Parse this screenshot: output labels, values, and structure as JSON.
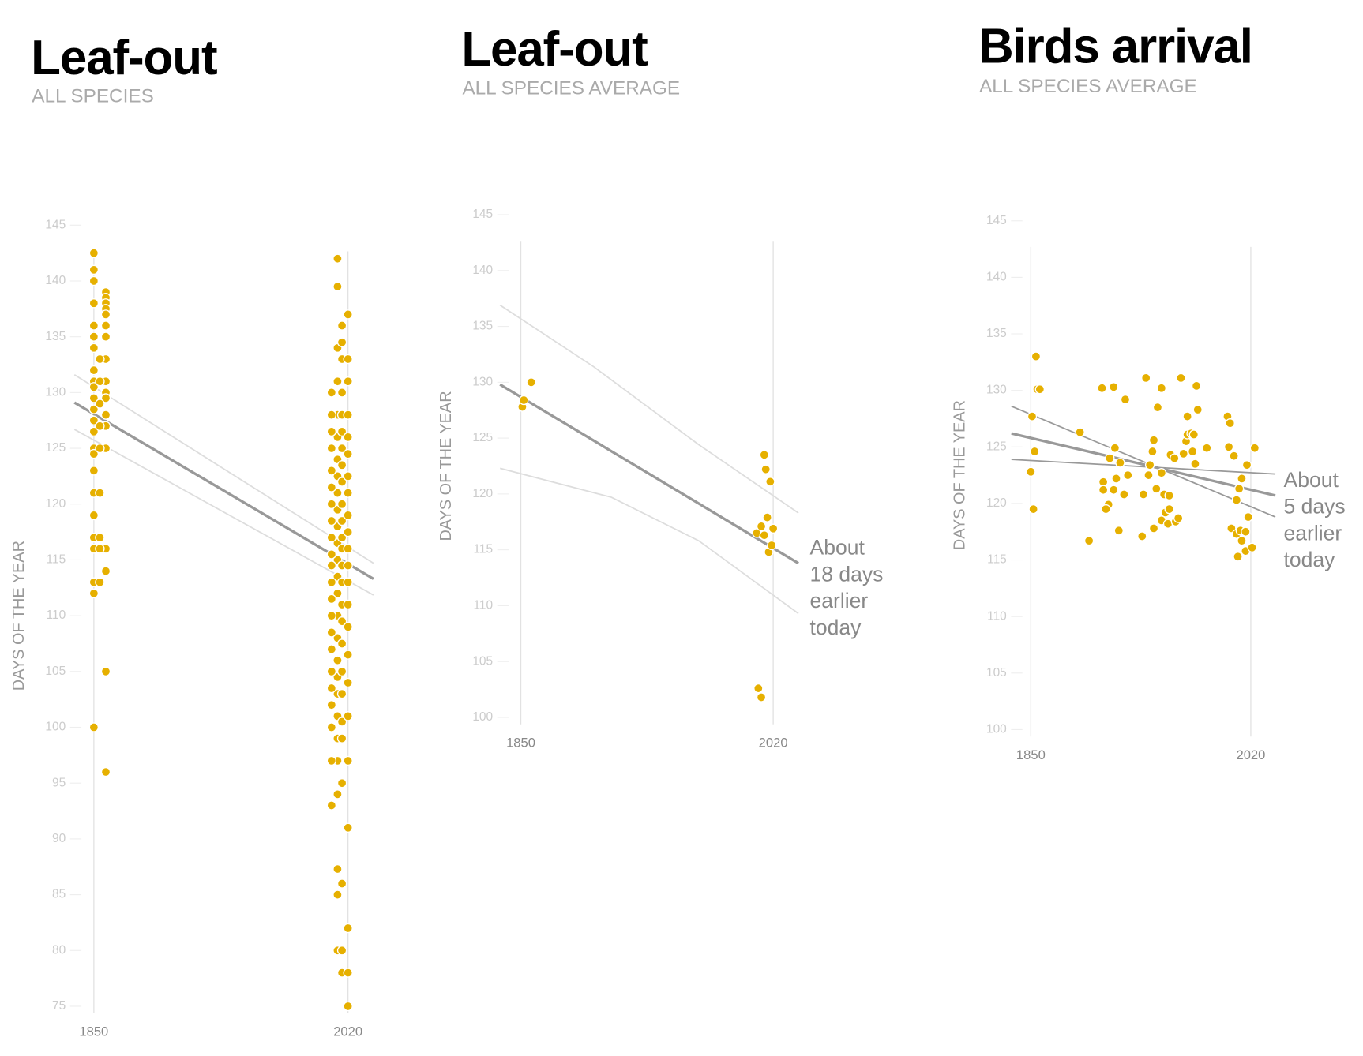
{
  "chart_data": [
    {
      "type": "scatter",
      "title": "Leaf-out",
      "subtitle": "ALL SPECIES",
      "y_label": "DAYS OF THE YEAR",
      "xlim": [
        1830,
        2040
      ],
      "ylim": [
        75,
        145
      ],
      "xticks": [
        1850,
        2020
      ],
      "yticks": [
        75,
        80,
        85,
        90,
        95,
        100,
        105,
        110,
        115,
        120,
        125,
        130,
        135,
        140,
        145
      ],
      "series": [
        {
          "mode": "markers",
          "color": "#e6b000",
          "x": [
            1850,
            1850,
            1850,
            1850,
            1850,
            1850,
            1850,
            1850,
            1850,
            1850,
            1850,
            1850,
            1850,
            1850,
            1850,
            1850,
            1850,
            1850,
            1850,
            1850,
            1850,
            1850,
            1850,
            1850,
            1858,
            1858,
            1858,
            1858,
            1858,
            1858,
            1858,
            1858,
            1858,
            1858,
            1858,
            1858,
            1858,
            1858,
            1858,
            1858,
            1858,
            1858,
            1854,
            1854,
            1854,
            1854,
            1854,
            1854,
            1854,
            1854,
            1854,
            2013,
            2013,
            2013,
            2013,
            2013,
            2013,
            2013,
            2013,
            2013,
            2013,
            2013,
            2013,
            2013,
            2013,
            2013,
            2013,
            2013,
            2013,
            2013,
            2013,
            2013,
            2013,
            2013,
            2013,
            2013,
            2013,
            2013,
            2009,
            2009,
            2009,
            2009,
            2009,
            2009,
            2009,
            2009,
            2009,
            2009,
            2009,
            2009,
            2009,
            2009,
            2009,
            2009,
            2009,
            2009,
            2009,
            2009,
            2009,
            2009,
            2016,
            2016,
            2016,
            2016,
            2016,
            2016,
            2016,
            2016,
            2016,
            2016,
            2016,
            2016,
            2016,
            2016,
            2016,
            2016,
            2016,
            2016,
            2016,
            2016,
            2016,
            2016,
            2016,
            2016,
            2016,
            2016,
            2020,
            2020,
            2020,
            2020,
            2020,
            2020,
            2020,
            2020,
            2020,
            2020,
            2020,
            2020,
            2020,
            2020,
            2020,
            2020,
            2020,
            2020,
            2020,
            2020,
            2020,
            2020,
            2020
          ],
          "values": [
            142.5,
            141,
            140,
            138,
            136,
            135,
            134,
            132,
            131,
            130.5,
            129.5,
            128.5,
            127.5,
            126.5,
            125,
            124.5,
            123,
            121,
            119,
            117,
            116,
            113,
            112,
            100,
            139,
            138.5,
            138,
            137.5,
            137,
            136,
            135,
            133,
            131,
            130,
            129.5,
            128,
            127,
            125,
            116,
            114,
            105,
            96,
            133,
            131,
            129,
            127,
            125,
            121,
            117,
            116,
            113,
            142,
            139.5,
            134,
            131,
            128,
            126,
            124,
            122.5,
            121,
            119.5,
            118,
            116.5,
            115,
            113.5,
            112,
            110,
            108,
            106,
            104.5,
            103,
            101,
            99,
            97,
            94,
            87.3,
            85,
            80,
            130,
            128,
            126.5,
            125,
            123,
            121.5,
            120,
            118.5,
            117,
            115.5,
            114.5,
            113,
            111.5,
            110,
            108.5,
            107,
            105,
            103.5,
            102,
            100,
            97,
            93,
            136,
            134.5,
            133,
            130,
            128,
            126.5,
            125,
            123.5,
            122,
            120,
            118.5,
            117,
            116,
            114.5,
            113,
            111,
            109.5,
            107.5,
            105,
            103,
            100.5,
            99,
            95,
            86,
            78,
            80,
            137,
            133,
            131,
            128,
            126,
            124.5,
            122.5,
            121,
            119,
            117.5,
            116,
            114.5,
            113,
            111,
            109,
            106.5,
            104,
            101,
            97,
            91,
            82,
            78,
            75
          ]
        },
        {
          "mode": "line",
          "color": "#999999",
          "x": [
            1837,
            2037
          ],
          "values": [
            129.1,
            113.3
          ]
        },
        {
          "mode": "line",
          "color": "#dddddd",
          "x": [
            1837,
            2037
          ],
          "values": [
            131.6,
            114.7
          ]
        },
        {
          "mode": "line",
          "color": "#dddddd",
          "x": [
            1837,
            2037
          ],
          "values": [
            126.7,
            111.85
          ]
        }
      ]
    },
    {
      "type": "scatter",
      "title": "Leaf-out",
      "subtitle": "ALL SPECIES AVERAGE",
      "y_label": "DAYS OF THE YEAR",
      "xlim": [
        1830,
        2040
      ],
      "ylim": [
        100,
        145
      ],
      "xticks": [
        1850,
        2020
      ],
      "yticks": [
        100,
        105,
        110,
        115,
        120,
        125,
        130,
        135,
        140,
        145
      ],
      "annotation": [
        "About",
        "18 days",
        "earlier",
        "today"
      ],
      "series": [
        {
          "mode": "markers",
          "color": "#e6b000",
          "x": [
            1851,
            1852,
            1857,
            2009,
            2012,
            2014,
            2014,
            2015,
            2016,
            2017,
            2018,
            2019,
            2020,
            2010,
            2012
          ],
          "values": [
            127.8,
            128.4,
            130.0,
            116.5,
            117.1,
            116.3,
            123.5,
            122.2,
            117.9,
            114.8,
            121.1,
            115.4,
            116.9,
            102.6,
            101.8
          ]
        },
        {
          "mode": "line",
          "color": "#999999",
          "x": [
            1836,
            2037
          ],
          "values": [
            129.8,
            113.8
          ]
        },
        {
          "mode": "line",
          "color": "#dddddd",
          "x": [
            1836,
            1899,
            1970,
            2037
          ],
          "values": [
            136.9,
            131.4,
            124.4,
            118.3
          ]
        },
        {
          "mode": "line",
          "color": "#dddddd",
          "x": [
            1836,
            1911,
            1970,
            2037
          ],
          "values": [
            122.3,
            119.7,
            115.8,
            109.3
          ]
        }
      ]
    },
    {
      "type": "scatter",
      "title": "Birds arrival",
      "subtitle": "ALL SPECIES AVERAGE",
      "y_label": "DAYS OF THE YEAR",
      "xlim": [
        1830,
        2040
      ],
      "ylim": [
        100,
        145
      ],
      "xticks": [
        1850,
        2020
      ],
      "yticks": [
        100,
        105,
        110,
        115,
        120,
        125,
        130,
        135,
        140,
        145
      ],
      "annotation": [
        "About",
        "5 days",
        "earlier",
        "today"
      ],
      "series": [
        {
          "mode": "markers",
          "color": "#e6b000",
          "x": [
            1854,
            1855,
            1857,
            1851,
            1853,
            1850,
            1852,
            1888,
            1895,
            1905,
            1914,
            1923,
            1939,
            1951,
            1966,
            1978,
            1948,
            1971,
            1979,
            1906,
            1911,
            1915,
            1919,
            1916,
            1925,
            1906,
            1910,
            1908,
            1914,
            1918,
            1922,
            1937,
            1936,
            1941,
            1942,
            1945,
            1944,
            1951,
            1947,
            1953,
            1957,
            1945,
            1951,
            1954,
            1957,
            1956,
            1962,
            1964,
            1958,
            1961,
            1970,
            1971,
            1974,
            1976,
            1968,
            1975,
            1977,
            1986,
            2002,
            2004,
            2003,
            2007,
            2013,
            2011,
            2009,
            2005,
            2009,
            2012,
            2016,
            2018,
            2013,
            2016,
            2010,
            2021,
            2017,
            2023
          ],
          "values": [
            133.0,
            130.1,
            130.1,
            127.7,
            124.6,
            122.8,
            119.5,
            126.3,
            116.7,
            130.2,
            130.3,
            129.2,
            131.1,
            130.2,
            131.1,
            130.4,
            128.5,
            127.7,
            128.3,
            121.9,
            124.0,
            124.9,
            123.6,
            122.2,
            122.5,
            121.2,
            119.9,
            119.5,
            121.2,
            117.6,
            120.8,
            120.8,
            117.1,
            122.5,
            123.4,
            125.6,
            124.6,
            122.7,
            121.3,
            120.8,
            120.7,
            117.8,
            118.5,
            119.2,
            119.5,
            118.2,
            118.4,
            118.7,
            124.3,
            124.0,
            125.5,
            126.1,
            126.2,
            126.1,
            124.4,
            124.6,
            123.5,
            124.9,
            127.7,
            127.1,
            125.0,
            124.2,
            122.2,
            121.3,
            120.3,
            117.8,
            117.3,
            117.6,
            117.5,
            118.8,
            116.7,
            115.8,
            115.3,
            116.1,
            123.4,
            124.9
          ]
        },
        {
          "mode": "line",
          "color": "#999999",
          "x": [
            1835,
            2039
          ],
          "values": [
            126.2,
            120.7
          ]
        },
        {
          "mode": "line",
          "color": "#999999",
          "x": [
            1835,
            2039
          ],
          "values": [
            128.6,
            118.8
          ]
        },
        {
          "mode": "line",
          "color": "#999999",
          "x": [
            1835,
            2039
          ],
          "values": [
            123.9,
            122.6
          ]
        }
      ]
    }
  ]
}
